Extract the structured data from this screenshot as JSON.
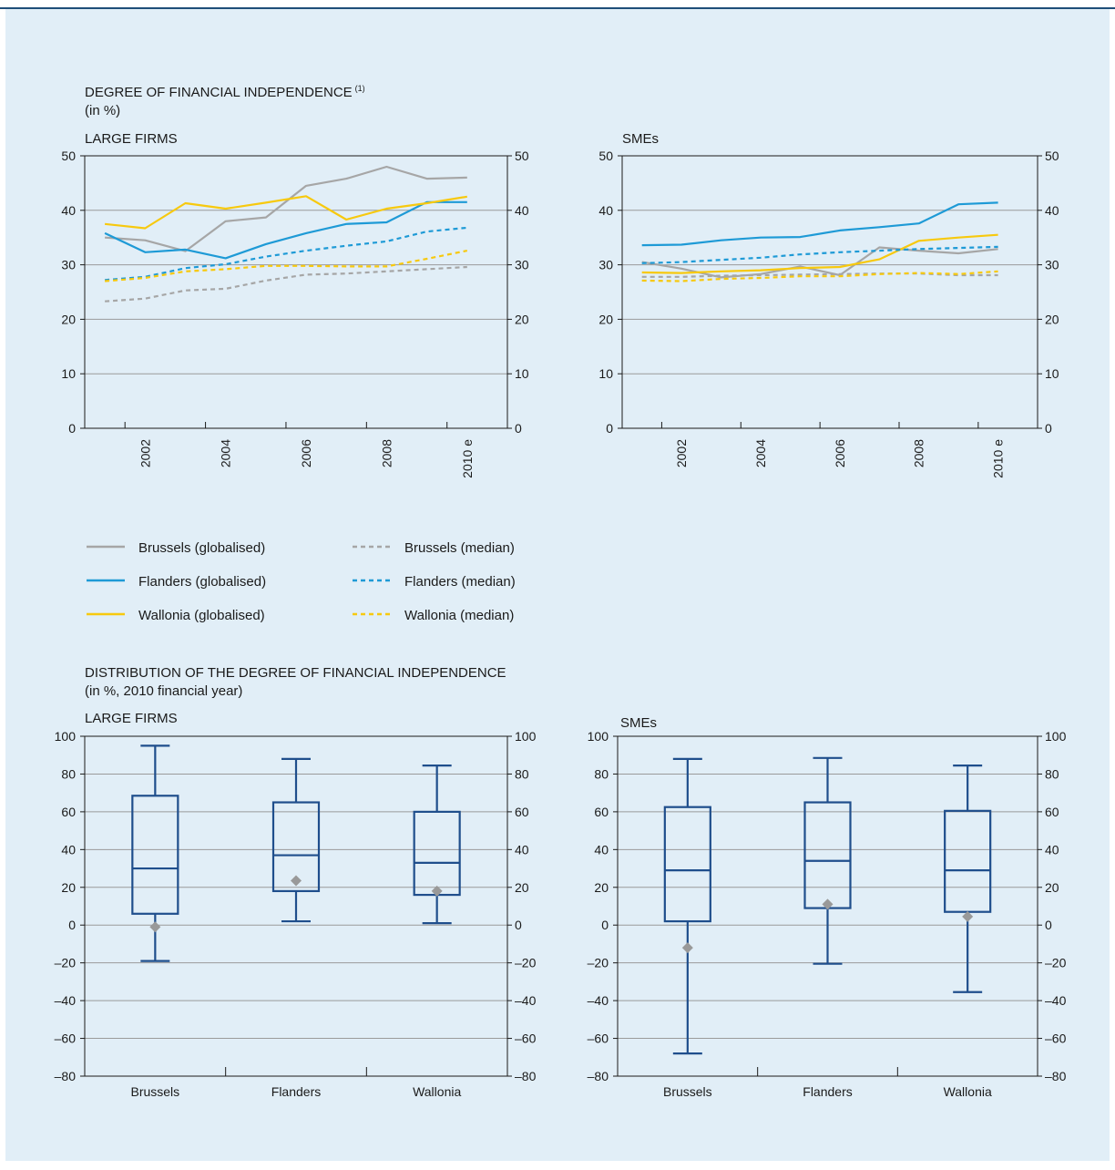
{
  "colors": {
    "brussels": "#a6a6a6",
    "flanders": "#1e9ad6",
    "wallonia": "#f7c90e",
    "box": "#1f4e8c",
    "mean_marker": "#999999",
    "grid": "#9a9a9a",
    "frame": "#1a1a1a",
    "panel_bg": "#e1eef7"
  },
  "header_top": {
    "title": "DEGREE OF FINANCIAL INDEPENDENCE",
    "note": "(1)",
    "unit": "(in %)"
  },
  "header_bottom": {
    "title": "DISTRIBUTION OF THE DEGREE OF FINANCIAL INDEPENDENCE",
    "unit": "(in %, 2010 financial year)"
  },
  "legend": [
    {
      "label": "Brussels (globalised)",
      "color": "#a6a6a6",
      "dashed": false
    },
    {
      "label": "Flanders (globalised)",
      "color": "#1e9ad6",
      "dashed": false
    },
    {
      "label": "Wallonia (globalised)",
      "color": "#f7c90e",
      "dashed": false
    },
    {
      "label": "Brussels (median)",
      "color": "#a6a6a6",
      "dashed": true
    },
    {
      "label": "Flanders (median)",
      "color": "#1e9ad6",
      "dashed": true
    },
    {
      "label": "Wallonia (median)",
      "color": "#f7c90e",
      "dashed": true
    }
  ],
  "chart_data": [
    {
      "type": "line",
      "title": "LARGE FIRMS",
      "x": [
        2001,
        2002,
        2003,
        2004,
        2005,
        2006,
        2007,
        2008,
        2009,
        2010
      ],
      "x_tick_labels": [
        "2002",
        "2004",
        "2006",
        "2008",
        "2010 e"
      ],
      "ylim": [
        0,
        50
      ],
      "y_ticks": [
        0,
        10,
        20,
        30,
        40,
        50
      ],
      "grid": true,
      "series": [
        {
          "name": "Brussels (globalised)",
          "dashed": false,
          "values": [
            35,
            34.5,
            32.5,
            38,
            38.7,
            44.5,
            45.8,
            48,
            45.8,
            46
          ]
        },
        {
          "name": "Flanders (globalised)",
          "dashed": false,
          "values": [
            35.8,
            32.3,
            32.8,
            31.2,
            33.8,
            35.8,
            37.5,
            37.8,
            41.5,
            41.5
          ]
        },
        {
          "name": "Wallonia (globalised)",
          "dashed": false,
          "values": [
            37.5,
            36.7,
            41.3,
            40.3,
            41.4,
            42.6,
            38.3,
            40.3,
            41.3,
            42.5
          ]
        },
        {
          "name": "Brussels (median)",
          "dashed": true,
          "values": [
            23.3,
            23.8,
            25.3,
            25.6,
            27.1,
            28.2,
            28.4,
            28.8,
            29.2,
            29.6
          ]
        },
        {
          "name": "Flanders (median)",
          "dashed": true,
          "values": [
            27.2,
            27.8,
            29.4,
            30.1,
            31.5,
            32.6,
            33.5,
            34.3,
            36.1,
            36.8
          ]
        },
        {
          "name": "Wallonia (median)",
          "dashed": true,
          "values": [
            27,
            27.6,
            28.8,
            29.2,
            29.8,
            29.8,
            29.7,
            29.7,
            31.1,
            32.6
          ]
        }
      ]
    },
    {
      "type": "line",
      "title": "SMEs",
      "x": [
        2001,
        2002,
        2003,
        2004,
        2005,
        2006,
        2007,
        2008,
        2009,
        2010
      ],
      "x_tick_labels": [
        "2002",
        "2004",
        "2006",
        "2008",
        "2010 e"
      ],
      "ylim": [
        0,
        50
      ],
      "y_ticks": [
        0,
        10,
        20,
        30,
        40,
        50
      ],
      "grid": true,
      "series": [
        {
          "name": "Brussels (globalised)",
          "dashed": false,
          "values": [
            30.5,
            29.3,
            27.7,
            28.3,
            29.7,
            28.1,
            33.2,
            32.6,
            32.1,
            32.9
          ]
        },
        {
          "name": "Flanders (globalised)",
          "dashed": false,
          "values": [
            33.6,
            33.7,
            34.5,
            35,
            35.1,
            36.3,
            36.9,
            37.6,
            41.1,
            41.4
          ]
        },
        {
          "name": "Wallonia (globalised)",
          "dashed": false,
          "values": [
            28.6,
            28.5,
            28.8,
            29,
            29.4,
            29.6,
            31,
            34.4,
            35,
            35.5
          ]
        },
        {
          "name": "Brussels (median)",
          "dashed": true,
          "values": [
            27.8,
            27.8,
            28,
            28.1,
            28.2,
            28.3,
            28.4,
            28.4,
            28.1,
            28.1
          ]
        },
        {
          "name": "Flanders (median)",
          "dashed": true,
          "values": [
            30.3,
            30.5,
            30.9,
            31.3,
            31.9,
            32.3,
            32.6,
            32.9,
            33.1,
            33.3
          ]
        },
        {
          "name": "Wallonia (median)",
          "dashed": true,
          "values": [
            27.1,
            27,
            27.4,
            27.6,
            27.9,
            27.9,
            28.3,
            28.5,
            28.3,
            28.8
          ]
        }
      ]
    },
    {
      "type": "box",
      "title": "LARGE FIRMS",
      "categories": [
        "Brussels",
        "Flanders",
        "Wallonia"
      ],
      "ylim": [
        -80,
        100
      ],
      "y_ticks": [
        -80,
        -60,
        -40,
        -20,
        0,
        20,
        40,
        60,
        80,
        100
      ],
      "y_tick_labels": [
        "–80",
        "–60",
        "–40",
        "–20",
        "0",
        "20",
        "40",
        "60",
        "80",
        "100"
      ],
      "grid": true,
      "boxes": [
        {
          "min": -19,
          "q1": 6,
          "median": 30,
          "q3": 68.5,
          "max": 95,
          "mean": -1
        },
        {
          "min": 2,
          "q1": 18,
          "median": 37,
          "q3": 65,
          "max": 88,
          "mean": 23.5
        },
        {
          "min": 1,
          "q1": 16,
          "median": 33,
          "q3": 60,
          "max": 84.5,
          "mean": 18
        }
      ]
    },
    {
      "type": "box",
      "title": "SMEs",
      "categories": [
        "Brussels",
        "Flanders",
        "Wallonia"
      ],
      "ylim": [
        -80,
        100
      ],
      "y_ticks": [
        -80,
        -60,
        -40,
        -20,
        0,
        20,
        40,
        60,
        80,
        100
      ],
      "y_tick_labels": [
        "–80",
        "–60",
        "–40",
        "–20",
        "0",
        "20",
        "40",
        "60",
        "80",
        "100"
      ],
      "grid": true,
      "boxes": [
        {
          "min": -68,
          "q1": 2,
          "median": 29,
          "q3": 62.5,
          "max": 88,
          "mean": -12
        },
        {
          "min": -20.5,
          "q1": 9,
          "median": 34,
          "q3": 65,
          "max": 88.5,
          "mean": 11
        },
        {
          "min": -35.5,
          "q1": 7,
          "median": 29,
          "q3": 60.5,
          "max": 84.5,
          "mean": 4.5
        }
      ]
    }
  ]
}
